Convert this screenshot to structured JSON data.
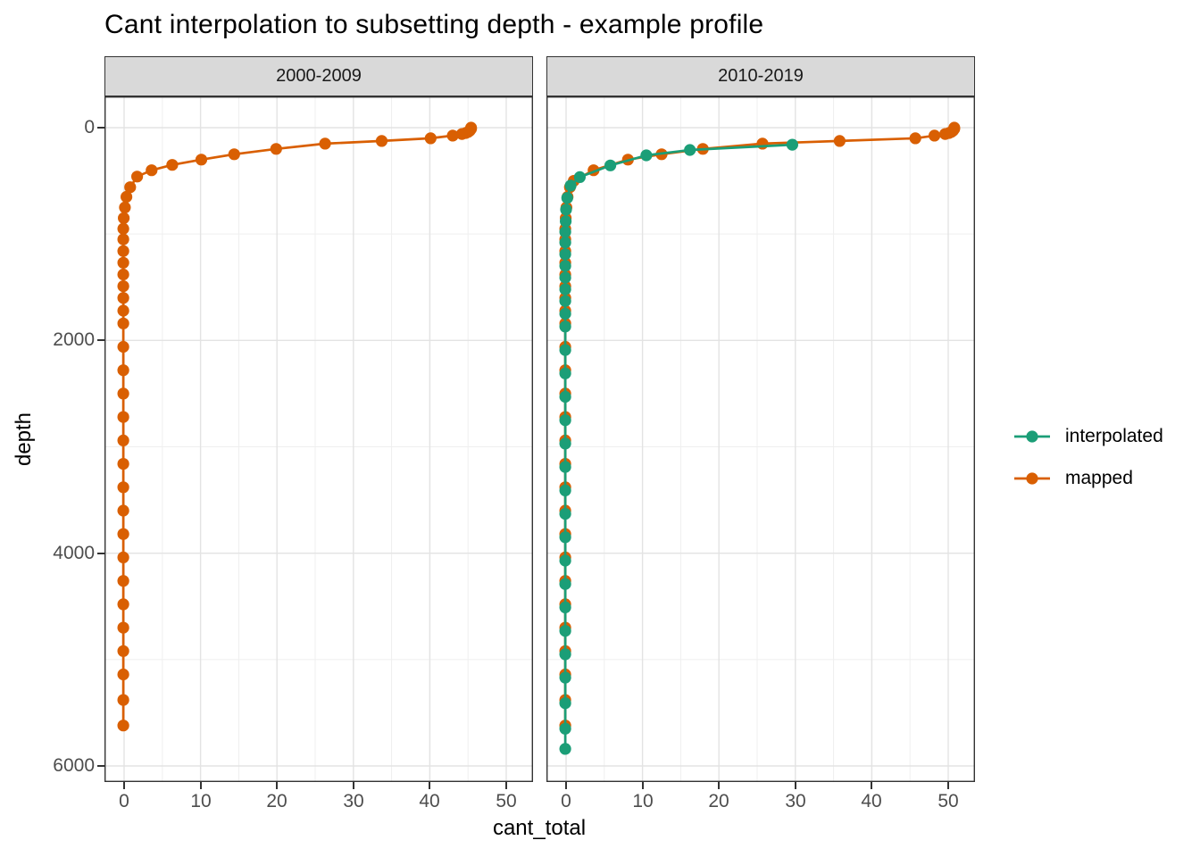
{
  "title": "Cant interpolation to subsetting depth - example profile",
  "x_axis_label": "cant_total",
  "y_axis_label": "depth",
  "legend": {
    "items": [
      {
        "label": "interpolated",
        "color": "#1B9E77"
      },
      {
        "label": "mapped",
        "color": "#D95F02"
      }
    ]
  },
  "theme": {
    "background": "#FFFFFF",
    "strip_fill": "#D9D9D9",
    "panel_border": "#333333",
    "grid_major": "#E3E3E3",
    "grid_minor": "#EFEFEF",
    "tick_text": "#4D4D4D"
  },
  "chart_data": {
    "type": "line",
    "title": "Cant interpolation to subsetting depth - example profile",
    "xlabel": "cant_total",
    "ylabel": "depth",
    "legend_position": "right",
    "grid": "major+minor",
    "y_reversed": true,
    "xlim": [
      -2.6,
      53.5
    ],
    "ylim": [
      -295,
      6150
    ],
    "xticks": [
      0,
      10,
      20,
      30,
      40,
      50
    ],
    "xticks_minor": [
      5,
      15,
      25,
      35,
      45
    ],
    "yticks": [
      0,
      2000,
      4000,
      6000
    ],
    "yticks_minor": [
      1000,
      3000,
      5000
    ],
    "facets": [
      {
        "label": "2000-2009",
        "series": [
          {
            "name": "mapped",
            "color": "#D95F02",
            "points": [
              [
                45.4,
                0
              ],
              [
                45.4,
                10
              ],
              [
                45.3,
                20
              ],
              [
                45.2,
                30
              ],
              [
                45.0,
                40
              ],
              [
                44.7,
                50
              ],
              [
                44.2,
                60
              ],
              [
                43.0,
                75
              ],
              [
                40.1,
                100
              ],
              [
                33.7,
                125
              ],
              [
                26.3,
                150
              ],
              [
                19.9,
                200
              ],
              [
                14.4,
                250
              ],
              [
                10.1,
                300
              ],
              [
                6.3,
                350
              ],
              [
                3.6,
                400
              ],
              [
                1.7,
                460
              ],
              [
                0.8,
                560
              ],
              [
                0.3,
                650
              ],
              [
                0.1,
                750
              ],
              [
                -0.05,
                850
              ],
              [
                -0.1,
                950
              ],
              [
                -0.1,
                1050
              ],
              [
                -0.1,
                1160
              ],
              [
                -0.1,
                1270
              ],
              [
                -0.1,
                1380
              ],
              [
                -0.1,
                1490
              ],
              [
                -0.1,
                1600
              ],
              [
                -0.1,
                1720
              ],
              [
                -0.1,
                1840
              ],
              [
                -0.1,
                2060
              ],
              [
                -0.1,
                2280
              ],
              [
                -0.1,
                2500
              ],
              [
                -0.1,
                2720
              ],
              [
                -0.1,
                2940
              ],
              [
                -0.1,
                3160
              ],
              [
                -0.1,
                3380
              ],
              [
                -0.1,
                3600
              ],
              [
                -0.1,
                3820
              ],
              [
                -0.1,
                4040
              ],
              [
                -0.1,
                4260
              ],
              [
                -0.1,
                4480
              ],
              [
                -0.1,
                4700
              ],
              [
                -0.1,
                4920
              ],
              [
                -0.1,
                5140
              ],
              [
                -0.1,
                5380
              ],
              [
                -0.1,
                5620
              ]
            ]
          }
        ]
      },
      {
        "label": "2010-2019",
        "series": [
          {
            "name": "mapped",
            "color": "#D95F02",
            "points": [
              [
                50.8,
                0
              ],
              [
                50.8,
                10
              ],
              [
                50.7,
                20
              ],
              [
                50.6,
                30
              ],
              [
                50.4,
                40
              ],
              [
                50.1,
                50
              ],
              [
                49.6,
                60
              ],
              [
                48.2,
                75
              ],
              [
                45.7,
                100
              ],
              [
                35.8,
                125
              ],
              [
                25.7,
                150
              ],
              [
                17.9,
                200
              ],
              [
                12.5,
                250
              ],
              [
                8.1,
                300
              ],
              [
                3.6,
                400
              ],
              [
                1.0,
                500
              ],
              [
                0.5,
                560
              ],
              [
                0.2,
                650
              ],
              [
                0.05,
                750
              ],
              [
                -0.05,
                850
              ],
              [
                -0.1,
                950
              ],
              [
                -0.1,
                1050
              ],
              [
                -0.1,
                1160
              ],
              [
                -0.1,
                1270
              ],
              [
                -0.1,
                1380
              ],
              [
                -0.1,
                1490
              ],
              [
                -0.1,
                1600
              ],
              [
                -0.1,
                1720
              ],
              [
                -0.1,
                1840
              ],
              [
                -0.1,
                2060
              ],
              [
                -0.1,
                2280
              ],
              [
                -0.1,
                2500
              ],
              [
                -0.1,
                2720
              ],
              [
                -0.1,
                2940
              ],
              [
                -0.1,
                3160
              ],
              [
                -0.1,
                3380
              ],
              [
                -0.1,
                3600
              ],
              [
                -0.1,
                3820
              ],
              [
                -0.1,
                4040
              ],
              [
                -0.1,
                4260
              ],
              [
                -0.1,
                4480
              ],
              [
                -0.1,
                4700
              ],
              [
                -0.1,
                4920
              ],
              [
                -0.1,
                5140
              ],
              [
                -0.1,
                5380
              ],
              [
                -0.1,
                5620
              ]
            ]
          },
          {
            "name": "interpolated",
            "color": "#1B9E77",
            "points": [
              [
                29.6,
                160
              ],
              [
                16.2,
                210
              ],
              [
                10.5,
                260
              ],
              [
                5.8,
                355
              ],
              [
                1.8,
                465
              ],
              [
                0.6,
                545
              ],
              [
                0.15,
                660
              ],
              [
                0.0,
                770
              ],
              [
                -0.05,
                880
              ],
              [
                -0.1,
                980
              ],
              [
                -0.1,
                1080
              ],
              [
                -0.1,
                1190
              ],
              [
                -0.1,
                1300
              ],
              [
                -0.1,
                1410
              ],
              [
                -0.1,
                1520
              ],
              [
                -0.1,
                1630
              ],
              [
                -0.1,
                1750
              ],
              [
                -0.1,
                1870
              ],
              [
                -0.1,
                2090
              ],
              [
                -0.1,
                2310
              ],
              [
                -0.1,
                2530
              ],
              [
                -0.1,
                2750
              ],
              [
                -0.1,
                2970
              ],
              [
                -0.1,
                3190
              ],
              [
                -0.1,
                3410
              ],
              [
                -0.1,
                3630
              ],
              [
                -0.1,
                3850
              ],
              [
                -0.1,
                4070
              ],
              [
                -0.1,
                4290
              ],
              [
                -0.1,
                4510
              ],
              [
                -0.1,
                4730
              ],
              [
                -0.1,
                4950
              ],
              [
                -0.1,
                5170
              ],
              [
                -0.1,
                5410
              ],
              [
                -0.1,
                5650
              ],
              [
                -0.1,
                5840
              ]
            ]
          }
        ]
      }
    ]
  }
}
